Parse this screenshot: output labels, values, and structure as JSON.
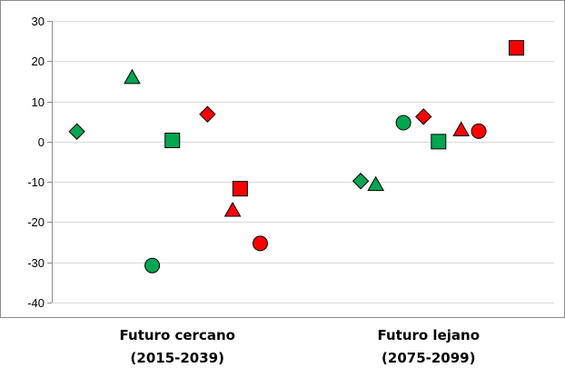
{
  "colors": {
    "green": "#00A651",
    "red": "#FF0000",
    "stroke": "#000000",
    "grid": "#D9D9D9"
  },
  "chart_data": {
    "type": "scatter",
    "ylim": [
      -40,
      30
    ],
    "y_ticks": [
      "30",
      "20",
      "10",
      "0",
      "-10",
      "-20",
      "-30",
      "-40"
    ],
    "grid": true,
    "categories": [
      {
        "label": "Futuro cercano",
        "period": "(2015-2039)"
      },
      {
        "label": "Futuro lejano",
        "period": "(2075-2099)"
      }
    ],
    "points": [
      {
        "category": 0,
        "offset": -0.4,
        "y": 2.5,
        "shape": "diamond",
        "color": "green"
      },
      {
        "category": 0,
        "offset": -0.18,
        "y": 15.8,
        "shape": "triangle",
        "color": "green"
      },
      {
        "category": 0,
        "offset": -0.02,
        "y": 0.3,
        "shape": "square",
        "color": "green"
      },
      {
        "category": 0,
        "offset": -0.1,
        "y": -30.8,
        "shape": "circle",
        "color": "green"
      },
      {
        "category": 0,
        "offset": 0.12,
        "y": 6.8,
        "shape": "diamond",
        "color": "red"
      },
      {
        "category": 0,
        "offset": 0.25,
        "y": -11.7,
        "shape": "square",
        "color": "red"
      },
      {
        "category": 0,
        "offset": 0.22,
        "y": -17.2,
        "shape": "triangle",
        "color": "red"
      },
      {
        "category": 0,
        "offset": 0.33,
        "y": -25.3,
        "shape": "circle",
        "color": "red"
      },
      {
        "category": 1,
        "offset": -0.27,
        "y": -9.8,
        "shape": "diamond",
        "color": "green"
      },
      {
        "category": 1,
        "offset": -0.21,
        "y": -10.8,
        "shape": "triangle",
        "color": "green"
      },
      {
        "category": 1,
        "offset": -0.1,
        "y": 4.7,
        "shape": "circle",
        "color": "green"
      },
      {
        "category": 1,
        "offset": 0.04,
        "y": 0.0,
        "shape": "square",
        "color": "green"
      },
      {
        "category": 1,
        "offset": -0.02,
        "y": 6.2,
        "shape": "diamond",
        "color": "red"
      },
      {
        "category": 1,
        "offset": 0.13,
        "y": 2.8,
        "shape": "triangle",
        "color": "red"
      },
      {
        "category": 1,
        "offset": 0.2,
        "y": 2.6,
        "shape": "circle",
        "color": "red"
      },
      {
        "category": 1,
        "offset": 0.35,
        "y": 23.3,
        "shape": "square",
        "color": "red"
      }
    ]
  }
}
